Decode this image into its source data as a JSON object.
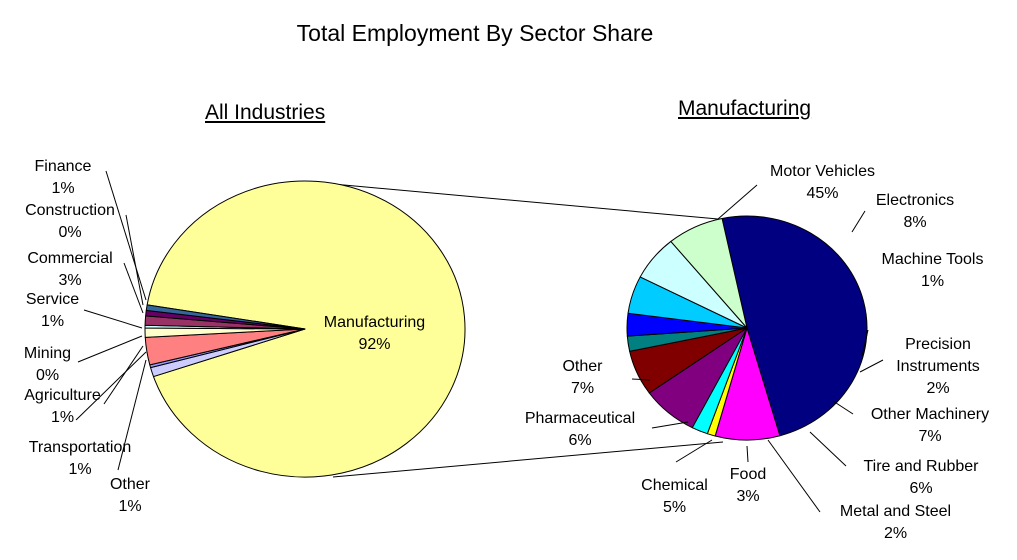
{
  "title": "Total Employment By Sector Share",
  "chart_data": [
    {
      "type": "pie",
      "title": "All Industries",
      "slices": [
        {
          "label": "Manufacturing",
          "pct": "92%",
          "value": 92,
          "color": "#FFFF99"
        },
        {
          "label": "Finance",
          "pct": "1%",
          "value": 1,
          "color": "#CCCCFF"
        },
        {
          "label": "Construction",
          "pct": "0%",
          "value": 0.3,
          "color": "#9999FF"
        },
        {
          "label": "Commercial",
          "pct": "3%",
          "value": 3,
          "color": "#FF8080"
        },
        {
          "label": "Service",
          "pct": "1%",
          "value": 1,
          "color": "#FFFFCC"
        },
        {
          "label": "Mining",
          "pct": "0%",
          "value": 0.3,
          "color": "#CCFFFF"
        },
        {
          "label": "Agriculture",
          "pct": "1%",
          "value": 1,
          "color": "#993366"
        },
        {
          "label": "Transportation",
          "pct": "1%",
          "value": 0.6,
          "color": "#660066"
        },
        {
          "label": "Other",
          "pct": "1%",
          "value": 0.6,
          "color": "#336699"
        }
      ]
    },
    {
      "type": "pie",
      "title": "Manufacturing",
      "slices": [
        {
          "label": "Motor Vehicles",
          "pct": "45%",
          "value": 45,
          "color": "#000080"
        },
        {
          "label": "Electronics",
          "pct": "8%",
          "value": 8,
          "color": "#FF00FF"
        },
        {
          "label": "Machine Tools",
          "pct": "1%",
          "value": 1,
          "color": "#FFFF00"
        },
        {
          "label": "Precision Instruments",
          "pct": "2%",
          "value": 2,
          "color": "#00FFFF"
        },
        {
          "label": "Other Machinery",
          "pct": "7%",
          "value": 7,
          "color": "#800080"
        },
        {
          "label": "Tire and Rubber",
          "pct": "6%",
          "value": 6,
          "color": "#800000"
        },
        {
          "label": "Metal and Steel",
          "pct": "2%",
          "value": 2,
          "color": "#008080"
        },
        {
          "label": "Food",
          "pct": "3%",
          "value": 3,
          "color": "#0000FF"
        },
        {
          "label": "Chemical",
          "pct": "5%",
          "value": 5,
          "color": "#00CCFF"
        },
        {
          "label": "Pharmaceutical",
          "pct": "6%",
          "value": 6,
          "color": "#CCFFFF"
        },
        {
          "label": "Other",
          "pct": "7%",
          "value": 7,
          "color": "#CCFFCC"
        }
      ]
    }
  ]
}
